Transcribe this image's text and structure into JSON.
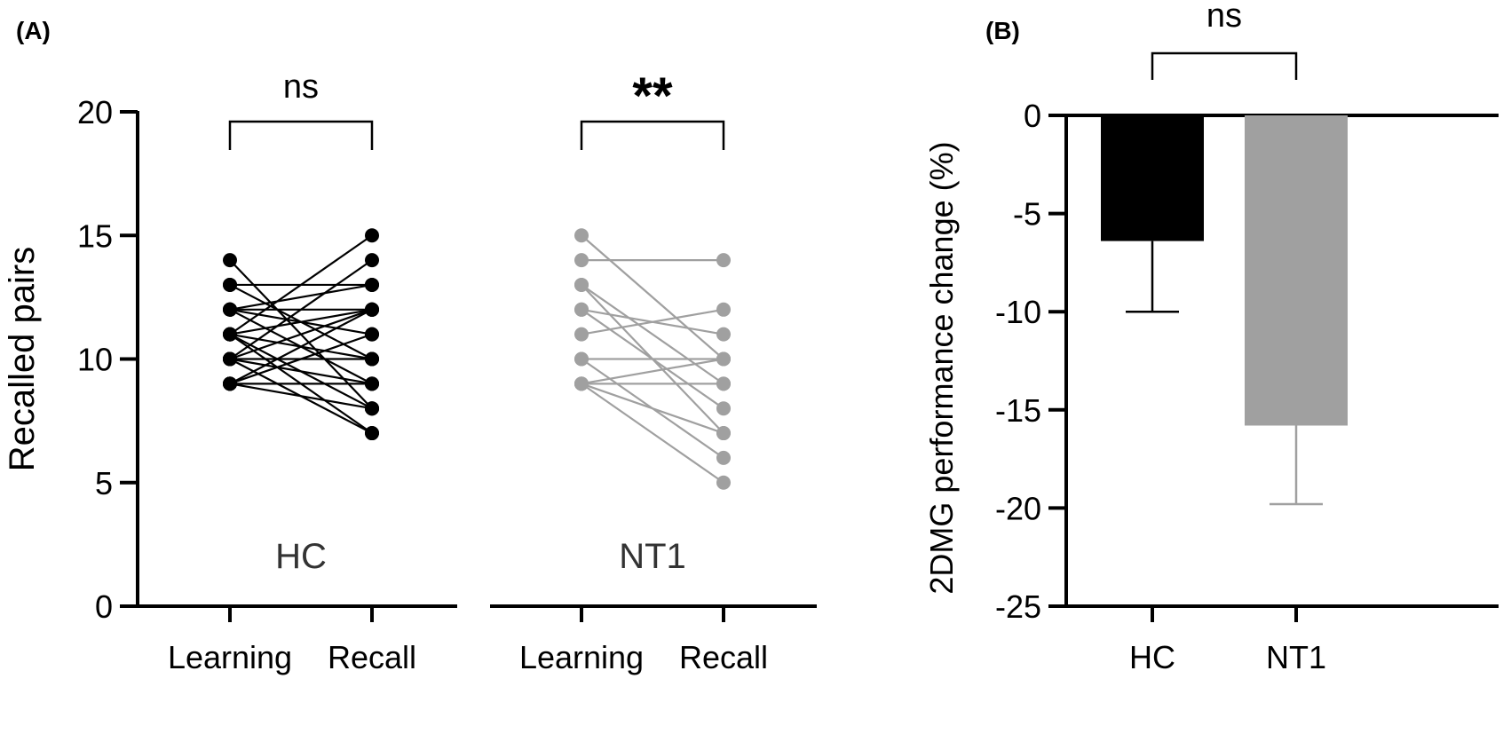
{
  "panel_labels": {
    "a": "(A)",
    "b": "(B)"
  },
  "chart_data": [
    {
      "type": "line",
      "panel": "(A)",
      "ylabel": "Recalled pairs",
      "ylim": [
        0,
        20
      ],
      "yticks": [
        0,
        5,
        10,
        15,
        20
      ],
      "conditions": [
        "Learning",
        "Recall"
      ],
      "groups": [
        {
          "name": "HC",
          "color": "#000000",
          "significance": "ns",
          "pairs": [
            [
              14,
              8
            ],
            [
              13,
              13
            ],
            [
              13,
              10
            ],
            [
              12,
              13
            ],
            [
              12,
              12
            ],
            [
              12,
              11
            ],
            [
              12,
              9
            ],
            [
              11,
              15
            ],
            [
              11,
              12
            ],
            [
              11,
              10
            ],
            [
              11,
              8
            ],
            [
              11,
              7
            ],
            [
              10,
              14
            ],
            [
              10,
              12
            ],
            [
              10,
              10
            ],
            [
              10,
              9
            ],
            [
              10,
              7
            ],
            [
              9,
              12
            ],
            [
              9,
              11
            ],
            [
              9,
              9
            ],
            [
              9,
              8
            ]
          ]
        },
        {
          "name": "NT1",
          "color": "#a0a0a0",
          "significance": "**",
          "pairs": [
            [
              15,
              10
            ],
            [
              14,
              14
            ],
            [
              13,
              9
            ],
            [
              13,
              7
            ],
            [
              12,
              11
            ],
            [
              12,
              8
            ],
            [
              11,
              12
            ],
            [
              10,
              10
            ],
            [
              10,
              6
            ],
            [
              9,
              10
            ],
            [
              9,
              9
            ],
            [
              9,
              7
            ],
            [
              9,
              5
            ]
          ]
        }
      ]
    },
    {
      "type": "bar",
      "panel": "(B)",
      "ylabel": "2DMG performance change (%)",
      "ylim": [
        -25,
        0
      ],
      "yticks": [
        0,
        -5,
        -10,
        -15,
        -20,
        -25
      ],
      "categories": [
        "HC",
        "NT1"
      ],
      "values": [
        -6.4,
        -15.8
      ],
      "error_lower": [
        -10.0,
        -19.8
      ],
      "colors": [
        "#000000",
        "#a0a0a0"
      ],
      "significance": "ns"
    }
  ]
}
